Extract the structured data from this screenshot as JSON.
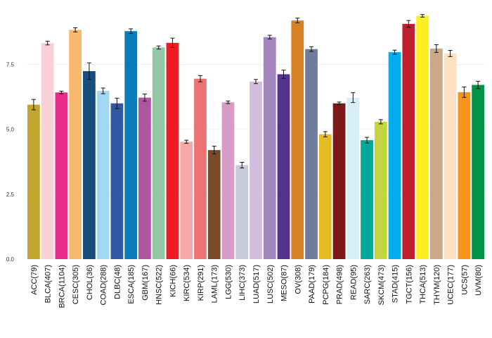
{
  "chart_data": {
    "type": "bar",
    "title": "",
    "xlabel": "",
    "ylabel": "",
    "ylim": [
      0,
      9.6
    ],
    "yticks": [
      {
        "value": 0,
        "label": "0.0"
      },
      {
        "value": 2.5,
        "label": "2.5"
      },
      {
        "value": 5,
        "label": "5.0"
      },
      {
        "value": 7.5,
        "label": "7.5"
      }
    ],
    "grid": true,
    "legend": "none",
    "error_bars": true,
    "categories": [
      "ACC(79)",
      "BLCA(407)",
      "BRCA(1104)",
      "CESC(305)",
      "CHOL(36)",
      "COAD(288)",
      "DLBC(48)",
      "ESCA(185)",
      "GBM(167)",
      "HNSC(522)",
      "KICH(66)",
      "KIRC(534)",
      "KIRP(291)",
      "LAML(173)",
      "LGG(530)",
      "LIHC(373)",
      "LUAD(517)",
      "LUSC(502)",
      "MESO(87)",
      "OV(308)",
      "PAAD(179)",
      "PCPG(184)",
      "PRAD(498)",
      "READ(95)",
      "SARC(263)",
      "SKCM(473)",
      "STAD(415)",
      "TGCT(156)",
      "THCA(513)",
      "THYM(120)",
      "UCEC(177)",
      "UCS(57)",
      "UVM(80)"
    ],
    "values": [
      5.95,
      8.32,
      6.42,
      8.83,
      7.24,
      6.48,
      6.0,
      8.78,
      6.22,
      8.15,
      8.33,
      4.52,
      6.95,
      4.2,
      6.04,
      3.62,
      6.84,
      8.55,
      7.12,
      9.19,
      8.09,
      4.81,
      6.0,
      6.22,
      4.58,
      5.29,
      7.97,
      9.06,
      9.37,
      8.11,
      7.92,
      6.43,
      6.71
    ],
    "errors": [
      0.2,
      0.07,
      0.05,
      0.08,
      0.32,
      0.11,
      0.2,
      0.09,
      0.14,
      0.06,
      0.18,
      0.06,
      0.12,
      0.15,
      0.05,
      0.11,
      0.08,
      0.07,
      0.16,
      0.09,
      0.09,
      0.1,
      0.05,
      0.19,
      0.11,
      0.08,
      0.08,
      0.13,
      0.05,
      0.15,
      0.12,
      0.2,
      0.14
    ],
    "colors": [
      "#C2A52E",
      "#F9CFD8",
      "#EC2A8C",
      "#F6B96D",
      "#164F7E",
      "#A3D8F2",
      "#3158A3",
      "#0B7BBA",
      "#AE57A1",
      "#92C8A3",
      "#ED1C24",
      "#F6A8A6",
      "#EC7374",
      "#7B4B27",
      "#D89BC8",
      "#C9CAD9",
      "#D3BEDF",
      "#A486BE",
      "#55318A",
      "#D78227",
      "#6F7C9C",
      "#E6BC23",
      "#7D181B",
      "#D9EFF8",
      "#00A99A",
      "#C4D53F",
      "#00AEEF",
      "#BE1E2D",
      "#FCEE21",
      "#CBA888",
      "#FCE1C4",
      "#F7941D",
      "#009245"
    ]
  }
}
